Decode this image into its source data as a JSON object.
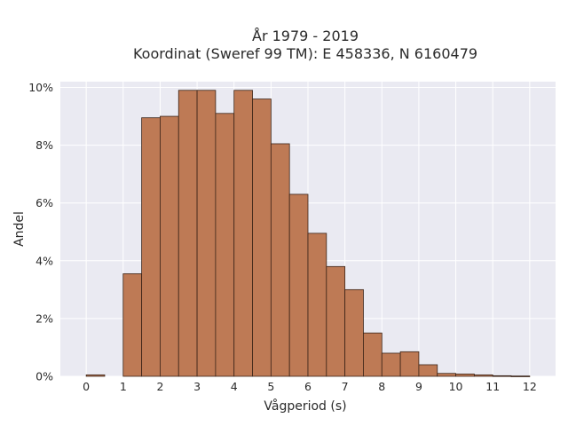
{
  "chart_data": {
    "type": "bar",
    "title_lines": [
      "År 1979 - 2019",
      "Koordinat (Sweref 99 TM): E 458336, N 6160479"
    ],
    "xlabel": "Vågperiod (s)",
    "ylabel": "Andel",
    "xlim": [
      -0.7,
      12.7
    ],
    "ylim": [
      0,
      10.2
    ],
    "x_ticks": [
      0,
      1,
      2,
      3,
      4,
      5,
      6,
      7,
      8,
      9,
      10,
      11,
      12
    ],
    "y_ticks": [
      0,
      2,
      4,
      6,
      8,
      10
    ],
    "y_tick_labels": [
      "0%",
      "2%",
      "4%",
      "6%",
      "8%",
      "10%"
    ],
    "bin_width": 0.5,
    "bins": [
      {
        "x0": 0.0,
        "x1": 0.5,
        "value": 0.05
      },
      {
        "x0": 0.5,
        "x1": 1.0,
        "value": 0.0
      },
      {
        "x0": 1.0,
        "x1": 1.5,
        "value": 3.55
      },
      {
        "x0": 1.5,
        "x1": 2.0,
        "value": 8.95
      },
      {
        "x0": 2.0,
        "x1": 2.5,
        "value": 9.0
      },
      {
        "x0": 2.5,
        "x1": 3.0,
        "value": 9.9
      },
      {
        "x0": 3.0,
        "x1": 3.5,
        "value": 9.9
      },
      {
        "x0": 3.5,
        "x1": 4.0,
        "value": 9.1
      },
      {
        "x0": 4.0,
        "x1": 4.5,
        "value": 9.9
      },
      {
        "x0": 4.5,
        "x1": 5.0,
        "value": 9.6
      },
      {
        "x0": 5.0,
        "x1": 5.5,
        "value": 8.05
      },
      {
        "x0": 5.5,
        "x1": 6.0,
        "value": 6.3
      },
      {
        "x0": 6.0,
        "x1": 6.5,
        "value": 4.95
      },
      {
        "x0": 6.5,
        "x1": 7.0,
        "value": 3.8
      },
      {
        "x0": 7.0,
        "x1": 7.5,
        "value": 3.0
      },
      {
        "x0": 7.5,
        "x1": 8.0,
        "value": 1.5
      },
      {
        "x0": 8.0,
        "x1": 8.5,
        "value": 0.8
      },
      {
        "x0": 8.5,
        "x1": 9.0,
        "value": 0.85
      },
      {
        "x0": 9.0,
        "x1": 9.5,
        "value": 0.4
      },
      {
        "x0": 9.5,
        "x1": 10.0,
        "value": 0.1
      },
      {
        "x0": 10.0,
        "x1": 10.5,
        "value": 0.08
      },
      {
        "x0": 10.5,
        "x1": 11.0,
        "value": 0.05
      },
      {
        "x0": 11.0,
        "x1": 11.5,
        "value": 0.02
      },
      {
        "x0": 11.5,
        "x1": 12.0,
        "value": 0.01
      }
    ],
    "grid": true,
    "colors": {
      "bar_fill": "#be7a55",
      "bar_edge": "#3b2418",
      "plot_background": "#eaeaf2",
      "grid": "#ffffff"
    }
  }
}
